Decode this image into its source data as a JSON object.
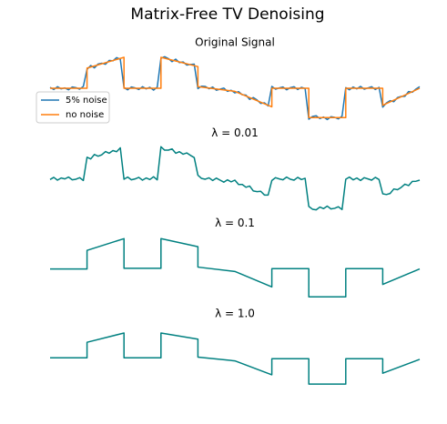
{
  "title": "Matrix-Free TV Denoising",
  "chart_data": [
    {
      "type": "line",
      "title": "Original Signal",
      "xlim": [
        0,
        100
      ],
      "ylim": [
        -1.25,
        1.25
      ],
      "legend": "center left",
      "series": [
        {
          "name": "5% noise",
          "color": "#1f77b4",
          "x": [
            0,
            1,
            2,
            3,
            4,
            5,
            6,
            7,
            8,
            9,
            10,
            11,
            12,
            13,
            14,
            15,
            16,
            17,
            18,
            19,
            20,
            21,
            22,
            23,
            24,
            25,
            26,
            27,
            28,
            29,
            30,
            31,
            32,
            33,
            34,
            35,
            36,
            37,
            38,
            39,
            40,
            41,
            42,
            43,
            44,
            45,
            46,
            47,
            48,
            49,
            50,
            51,
            52,
            53,
            54,
            55,
            56,
            57,
            58,
            59,
            60,
            61,
            62,
            63,
            64,
            65,
            66,
            67,
            68,
            69,
            70,
            71,
            72,
            73,
            74,
            75,
            76,
            77,
            78,
            79,
            80,
            81,
            82,
            83,
            84,
            85,
            86,
            87,
            88,
            89,
            90,
            91,
            92,
            93,
            94,
            95,
            96,
            97,
            98,
            99,
            100
          ],
          "values": [
            0.03,
            -0.04,
            0.05,
            -0.02,
            0.01,
            -0.05,
            0.04,
            0.02,
            -0.03,
            0.06,
            0.61,
            0.735,
            0.66,
            0.785,
            0.81,
            0.775,
            0.9,
            0.885,
            0.99,
            0.935,
            0.02,
            -0.05,
            0.04,
            0.01,
            -0.04,
            0.05,
            -0.02,
            0.03,
            -0.06,
            0.04,
            0.97,
            1.02,
            0.96,
            0.86,
            0.94,
            0.83,
            0.85,
            0.75,
            0.77,
            0.78,
            -0.01,
            0.065,
            0.06,
            -0.015,
            0.04,
            -0.065,
            -0.03,
            0.005,
            -0.1,
            -0.065,
            -0.15,
            -0.11,
            -0.21,
            -0.22,
            -0.36,
            -0.3,
            -0.38,
            -0.49,
            -0.47,
            -0.57,
            0.06,
            -0.03,
            0.01,
            0.04,
            -0.05,
            0.02,
            0.05,
            -0.04,
            0.03,
            -0.01,
            -1.0,
            -0.91,
            -0.89,
            -0.98,
            -0.93,
            -1.01,
            -0.92,
            -0.94,
            -0.99,
            -0.9,
            0.02,
            -0.05,
            0.04,
            -0.02,
            0.06,
            -0.03,
            0.01,
            0.05,
            -0.04,
            0.03,
            -0.61,
            -0.475,
            -0.4,
            -0.435,
            -0.3,
            -0.265,
            -0.26,
            -0.105,
            -0.13,
            -0.025,
            0.05
          ]
        },
        {
          "name": "no noise",
          "color": "#ff7f0e",
          "x": [
            0,
            10,
            10,
            20,
            20,
            30,
            30,
            40,
            40,
            50,
            60,
            60,
            70,
            70,
            80,
            80,
            90,
            90,
            100
          ],
          "values": [
            0,
            0,
            0.65,
            1.0,
            0,
            0,
            1.0,
            0.7,
            0.05,
            -0.1,
            -0.6,
            0,
            0,
            -0.95,
            -0.95,
            0,
            0,
            -0.55,
            0
          ]
        }
      ]
    },
    {
      "type": "line",
      "title": "λ = 0.01",
      "xlim": [
        0,
        100
      ],
      "ylim": [
        -1.25,
        1.25
      ],
      "series": [
        {
          "color": "#008080",
          "x": [
            0,
            1,
            2,
            3,
            4,
            5,
            6,
            7,
            8,
            9,
            10,
            11,
            12,
            13,
            14,
            15,
            16,
            17,
            18,
            19,
            20,
            21,
            22,
            23,
            24,
            25,
            26,
            27,
            28,
            29,
            30,
            31,
            32,
            33,
            34,
            35,
            36,
            37,
            38,
            39,
            40,
            41,
            42,
            43,
            44,
            45,
            46,
            47,
            48,
            49,
            50,
            51,
            52,
            53,
            54,
            55,
            56,
            57,
            58,
            59,
            60,
            61,
            62,
            63,
            64,
            65,
            66,
            67,
            68,
            69,
            70,
            71,
            72,
            73,
            74,
            75,
            76,
            77,
            78,
            79,
            80,
            81,
            82,
            83,
            84,
            85,
            86,
            87,
            88,
            89,
            90,
            91,
            92,
            93,
            94,
            95,
            96,
            97,
            98,
            99,
            100
          ],
          "values": [
            -0.03,
            0.04,
            -0.05,
            0.02,
            -0.01,
            0.05,
            -0.04,
            -0.02,
            0.03,
            -0.06,
            0.69,
            0.635,
            0.78,
            0.725,
            0.77,
            0.875,
            0.82,
            0.905,
            0.87,
            0.995,
            -0.02,
            0.05,
            -0.04,
            -0.01,
            0.04,
            -0.05,
            0.02,
            -0.03,
            0.06,
            -0.04,
            1.03,
            0.92,
            0.92,
            0.96,
            0.82,
            0.87,
            0.79,
            0.83,
            0.75,
            0.68,
            0.11,
            0.005,
            -0.02,
            0.025,
            -0.06,
            0.015,
            -0.05,
            -0.115,
            -0.04,
            -0.105,
            -0.05,
            -0.19,
            -0.19,
            -0.28,
            -0.24,
            -0.4,
            -0.42,
            -0.41,
            -0.53,
            -0.53,
            -0.06,
            0.03,
            -0.01,
            -0.04,
            0.05,
            -0.02,
            -0.05,
            0.04,
            -0.03,
            0.01,
            -0.9,
            -0.99,
            -1.01,
            -0.92,
            -0.97,
            -0.89,
            -0.98,
            -0.96,
            -0.91,
            -1.0,
            -0.02,
            0.05,
            -0.04,
            0.02,
            -0.06,
            0.03,
            -0.01,
            -0.05,
            0.04,
            -0.03,
            -0.49,
            -0.515,
            -0.48,
            -0.335,
            -0.36,
            -0.285,
            -0.18,
            -0.225,
            -0.09,
            -0.085,
            -0.05
          ]
        }
      ]
    },
    {
      "type": "line",
      "title": "λ = 0.1",
      "xlim": [
        0,
        100
      ],
      "ylim": [
        -1.25,
        1.25
      ],
      "series": [
        {
          "color": "#008080",
          "x": [
            0,
            10,
            10,
            20,
            20,
            30,
            30,
            40,
            40,
            50,
            60,
            60,
            70,
            70,
            80,
            80,
            90,
            90,
            100
          ],
          "values": [
            0,
            0,
            0.6,
            0.98,
            0.02,
            0.02,
            0.98,
            0.72,
            0.06,
            -0.08,
            -0.58,
            0.01,
            0.01,
            -0.9,
            -0.9,
            0.01,
            0.01,
            -0.5,
            0
          ]
        }
      ]
    },
    {
      "type": "line",
      "title": "λ = 1.0",
      "xlim": [
        0,
        100
      ],
      "ylim": [
        -1.25,
        1.25
      ],
      "series": [
        {
          "color": "#008080",
          "x": [
            0,
            10,
            10,
            20,
            20,
            30,
            30,
            40,
            40,
            50,
            60,
            60,
            70,
            70,
            80,
            80,
            90,
            90,
            100
          ],
          "values": [
            0.05,
            0.05,
            0.55,
            0.85,
            0.05,
            0.05,
            0.85,
            0.65,
            0.07,
            -0.05,
            -0.5,
            0.02,
            0.02,
            -0.8,
            -0.8,
            0.02,
            0.02,
            -0.45,
            0
          ]
        }
      ]
    }
  ]
}
